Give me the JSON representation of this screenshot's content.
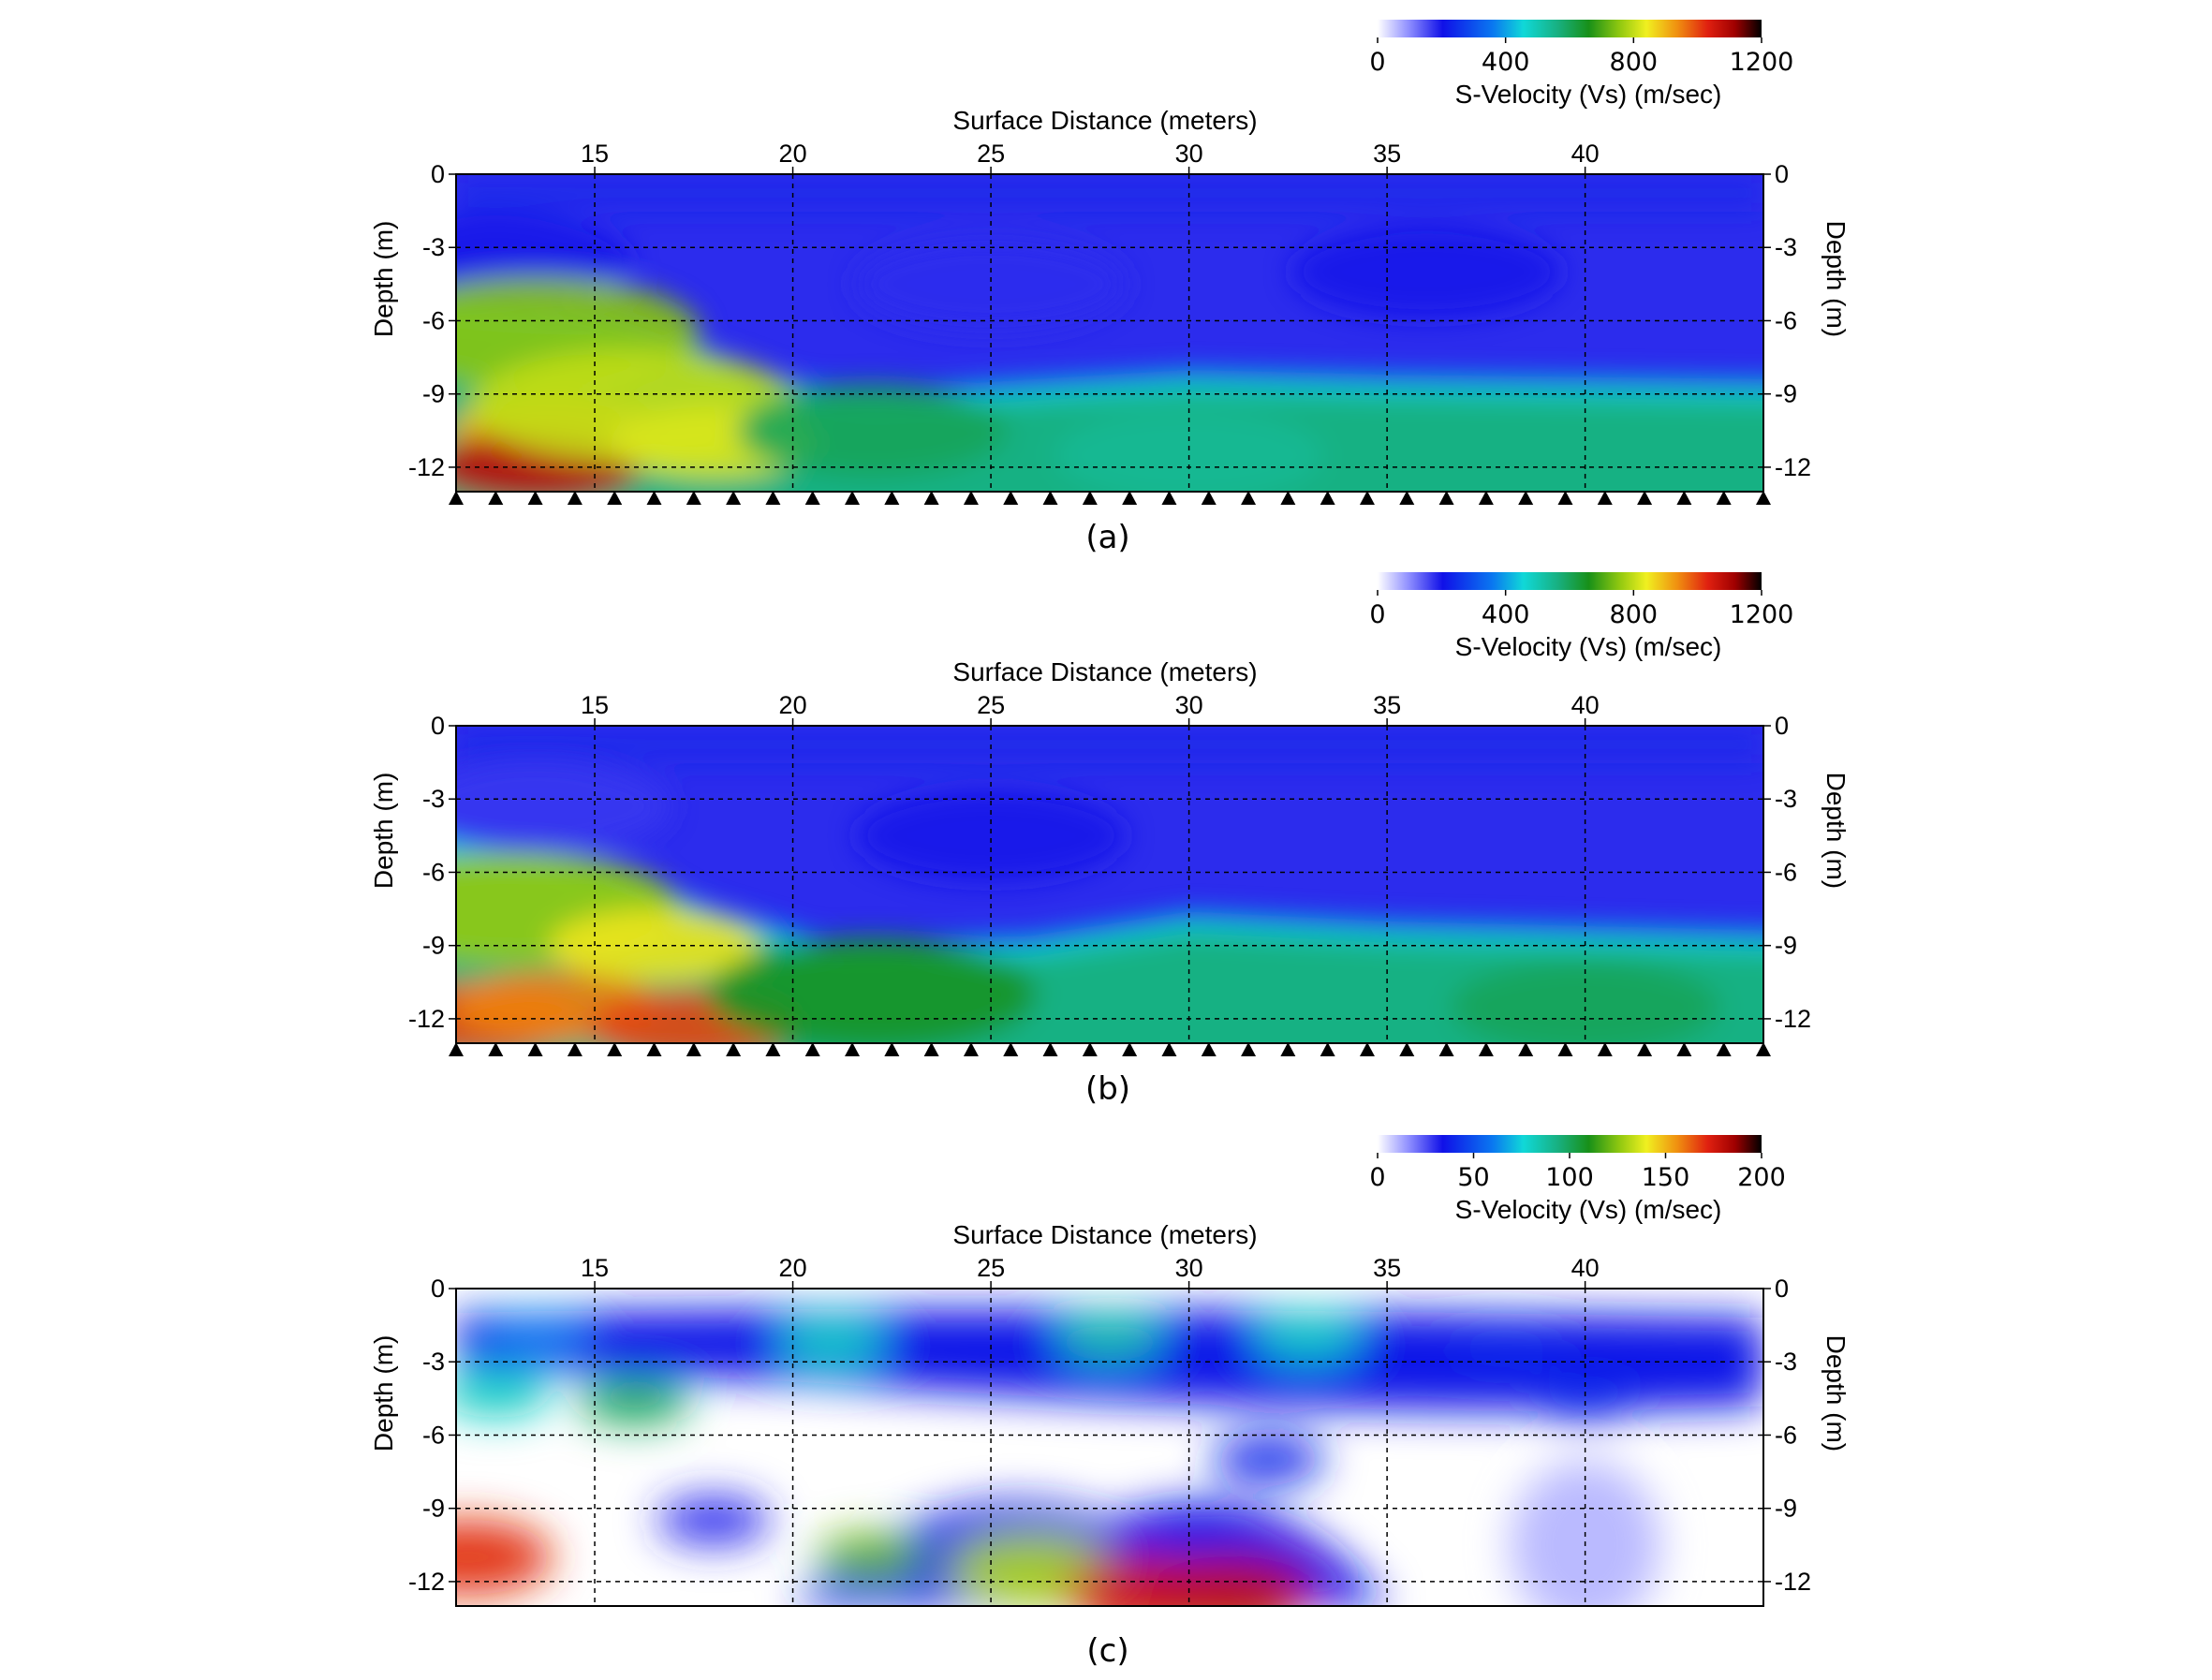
{
  "chart_data": [
    {
      "type": "heatmap",
      "caption": "(a)",
      "xlabel": "Surface Distance (meters)",
      "ylabel": "Depth (m)",
      "x_ticks": [
        15,
        20,
        25,
        30,
        35,
        40
      ],
      "y_ticks": [
        0,
        -3,
        -6,
        -9,
        -12
      ],
      "xlim": [
        11.5,
        44.5
      ],
      "ylim": [
        -13,
        0
      ],
      "colorbar": {
        "label": "S-Velocity (Vs) (m/sec)",
        "ticks": [
          0,
          400,
          800,
          1200
        ],
        "range": [
          0,
          1200
        ]
      },
      "geophones": {
        "start": 11.5,
        "end": 44.5,
        "count": 34
      },
      "features": [
        {
          "x": 12.5,
          "y": -3.5,
          "value": 200
        },
        {
          "x": 13.5,
          "y": -6.5,
          "value": 750
        },
        {
          "x": 14,
          "y": -10.5,
          "value": 900
        },
        {
          "x": 13.5,
          "y": -12,
          "value": 1080
        },
        {
          "x": 16,
          "y": -9.5,
          "value": 800
        },
        {
          "x": 18,
          "y": -11,
          "value": 820
        },
        {
          "x": 22,
          "y": -10.5,
          "value": 600
        },
        {
          "x": 30,
          "y": -11.5,
          "value": 540
        },
        {
          "x": 40,
          "y": -11.5,
          "value": 560
        },
        {
          "x": 25,
          "y": -4.5,
          "value": 180
        },
        {
          "x": 36,
          "y": -4,
          "value": 200
        }
      ],
      "interface": [
        [
          11.5,
          -5.8
        ],
        [
          15,
          -6.5
        ],
        [
          18,
          -8
        ],
        [
          20,
          -9.2
        ],
        [
          22,
          -9.6
        ],
        [
          30,
          -8.8
        ],
        [
          35,
          -9.0
        ],
        [
          44.5,
          -9.2
        ]
      ]
    },
    {
      "type": "heatmap",
      "caption": "(b)",
      "xlabel": "Surface Distance (meters)",
      "ylabel": "Depth (m)",
      "x_ticks": [
        15,
        20,
        25,
        30,
        35,
        40
      ],
      "y_ticks": [
        0,
        -3,
        -6,
        -9,
        -12
      ],
      "xlim": [
        11.5,
        44.5
      ],
      "ylim": [
        -13,
        0
      ],
      "colorbar": {
        "label": "S-Velocity (Vs) (m/sec)",
        "ticks": [
          0,
          400,
          800,
          1200
        ],
        "range": [
          0,
          1200
        ]
      },
      "geophones": {
        "start": 11.5,
        "end": 44.5,
        "count": 34
      },
      "features": [
        {
          "x": 13.5,
          "y": -3.3,
          "value": 170
        },
        {
          "x": 13,
          "y": -7.5,
          "value": 760
        },
        {
          "x": 12,
          "y": -12,
          "value": 1000
        },
        {
          "x": 14,
          "y": -11.5,
          "value": 950
        },
        {
          "x": 16.5,
          "y": -9,
          "value": 850
        },
        {
          "x": 17.5,
          "y": -12.3,
          "value": 1000
        },
        {
          "x": 22,
          "y": -11,
          "value": 650
        },
        {
          "x": 30,
          "y": -11.5,
          "value": 560
        },
        {
          "x": 40,
          "y": -11.5,
          "value": 600
        },
        {
          "x": 25,
          "y": -4.5,
          "value": 200
        }
      ],
      "interface": [
        [
          11.5,
          -5.2
        ],
        [
          15,
          -6.2
        ],
        [
          18,
          -8.2
        ],
        [
          21,
          -9.6
        ],
        [
          26,
          -9.4
        ],
        [
          30,
          -8.4
        ],
        [
          35,
          -8.8
        ],
        [
          44.5,
          -9.2
        ]
      ]
    },
    {
      "type": "heatmap",
      "caption": "(c)",
      "xlabel": "Surface Distance (meters)",
      "ylabel": "Depth (m)",
      "x_ticks": [
        15,
        20,
        25,
        30,
        35,
        40
      ],
      "y_ticks": [
        0,
        -3,
        -6,
        -9,
        -12
      ],
      "xlim": [
        11.5,
        44.5
      ],
      "ylim": [
        -13,
        0
      ],
      "colorbar": {
        "label": "S-Velocity (Vs) (m/sec)",
        "ticks": [
          0,
          50,
          100,
          150,
          200
        ],
        "range": [
          0,
          200
        ]
      },
      "features": [
        {
          "x": 13.5,
          "y": -1.9,
          "value": 60
        },
        {
          "x": 12.5,
          "y": -4.3,
          "value": 80
        },
        {
          "x": 16,
          "y": -4.6,
          "value": 100
        },
        {
          "x": 21,
          "y": -2.2,
          "value": 80
        },
        {
          "x": 28,
          "y": -2.0,
          "value": 85
        },
        {
          "x": 33,
          "y": -2.0,
          "value": 80
        },
        {
          "x": 38,
          "y": -2.3,
          "value": 40
        },
        {
          "x": 40,
          "y": -4.5,
          "value": 40
        },
        {
          "x": 11.8,
          "y": -11,
          "value": 170
        },
        {
          "x": 22,
          "y": -11,
          "value": 120
        },
        {
          "x": 26,
          "y": -11.5,
          "value": 130
        },
        {
          "x": 29,
          "y": -12.5,
          "value": 175
        },
        {
          "x": 31,
          "y": -12.5,
          "value": 180
        },
        {
          "x": 32,
          "y": -7,
          "value": 40
        },
        {
          "x": 18,
          "y": -9.5,
          "value": 30
        }
      ]
    }
  ]
}
